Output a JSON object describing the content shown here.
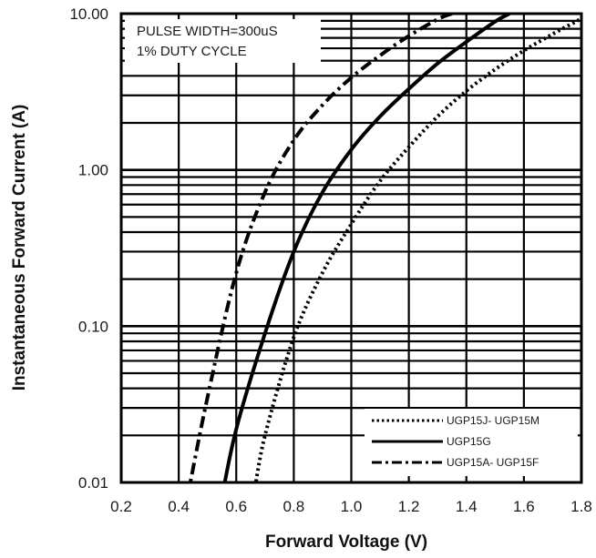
{
  "chart_data": {
    "type": "line",
    "xlabel": "Forward Voltage (V)",
    "ylabel": "Instantaneous Forward Current (A)",
    "x_scale": "linear",
    "y_scale": "log",
    "xlim": [
      0.2,
      1.8
    ],
    "ylim": [
      0.01,
      10
    ],
    "x_ticks": [
      "0.2",
      "0.4",
      "0.6",
      "0.8",
      "1.0",
      "1.2",
      "1.4",
      "1.6",
      "1.8"
    ],
    "y_ticks": [
      "0.01",
      "0.10",
      "1.00",
      "10.00"
    ],
    "grid": true,
    "legend_position": "bottom-right",
    "annotations": [
      "PULSE WIDTH=300uS",
      "1% DUTY CYCLE"
    ],
    "series": [
      {
        "name": "UGP15J- UGP15M",
        "style": "dotted",
        "points": [
          [
            0.66,
            0.008
          ],
          [
            0.7,
            0.02
          ],
          [
            0.8,
            0.085
          ],
          [
            0.9,
            0.22
          ],
          [
            1.0,
            0.45
          ],
          [
            1.1,
            0.85
          ],
          [
            1.2,
            1.4
          ],
          [
            1.3,
            2.2
          ],
          [
            1.4,
            3.2
          ],
          [
            1.5,
            4.4
          ],
          [
            1.6,
            5.8
          ],
          [
            1.7,
            7.4
          ],
          [
            1.8,
            9.3
          ]
        ]
      },
      {
        "name": "UGP15G",
        "style": "solid",
        "points": [
          [
            0.55,
            0.008
          ],
          [
            0.6,
            0.022
          ],
          [
            0.7,
            0.09
          ],
          [
            0.8,
            0.3
          ],
          [
            0.9,
            0.72
          ],
          [
            1.0,
            1.35
          ],
          [
            1.1,
            2.2
          ],
          [
            1.2,
            3.3
          ],
          [
            1.3,
            4.8
          ],
          [
            1.4,
            6.6
          ],
          [
            1.5,
            8.9
          ],
          [
            1.55,
            10.0
          ]
        ]
      },
      {
        "name": "UGP15A- UGP15F",
        "style": "dash-dot",
        "points": [
          [
            0.43,
            0.008
          ],
          [
            0.5,
            0.035
          ],
          [
            0.6,
            0.22
          ],
          [
            0.7,
            0.72
          ],
          [
            0.8,
            1.55
          ],
          [
            0.9,
            2.6
          ],
          [
            1.0,
            3.9
          ],
          [
            1.1,
            5.4
          ],
          [
            1.2,
            7.2
          ],
          [
            1.3,
            9.2
          ],
          [
            1.35,
            10.0
          ]
        ]
      }
    ]
  },
  "colors": {
    "grid": "#000000",
    "line": "#000000",
    "background": "#ffffff"
  }
}
